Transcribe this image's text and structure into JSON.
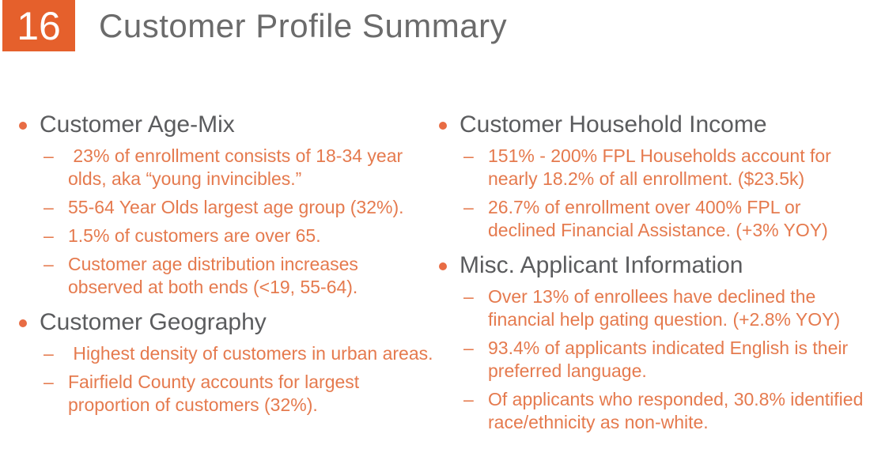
{
  "slide": {
    "number": "16",
    "title": "Customer Profile Summary"
  },
  "markers": {
    "dash": "–"
  },
  "colors": {
    "accent_orange_box": "#E5602C",
    "body_text_orange": "#E57A4E",
    "heading_gray": "#5B5C5E",
    "title_gray": "#6B6B6B",
    "number_text_white": "#FFFFFF"
  },
  "columns": [
    {
      "sections": [
        {
          "heading": "Customer Age-Mix",
          "items": [
            " 23% of enrollment consists of 18-34 year olds, aka “young invincibles.”",
            "55-64 Year Olds largest age group (32%).",
            "1.5% of customers are over 65.",
            "Customer age distribution increases observed at both ends (<19, 55-64)."
          ]
        },
        {
          "heading": "Customer Geography",
          "items": [
            " Highest density of customers in urban areas.",
            "Fairfield County accounts for largest proportion of customers (32%)."
          ]
        }
      ]
    },
    {
      "sections": [
        {
          "heading": "Customer Household Income",
          "items": [
            "151% - 200% FPL Households account for nearly 18.2% of all enrollment. ($23.5k)",
            "26.7% of enrollment over 400% FPL or declined Financial Assistance. (+3% YOY)"
          ]
        },
        {
          "heading": "Misc. Applicant Information",
          "items": [
            "Over 13% of enrollees have declined the financial help gating question. (+2.8% YOY)",
            "93.4% of applicants indicated English is their preferred language.",
            "Of applicants who responded, 30.8% identified race/ethnicity as non-white."
          ]
        }
      ]
    }
  ]
}
